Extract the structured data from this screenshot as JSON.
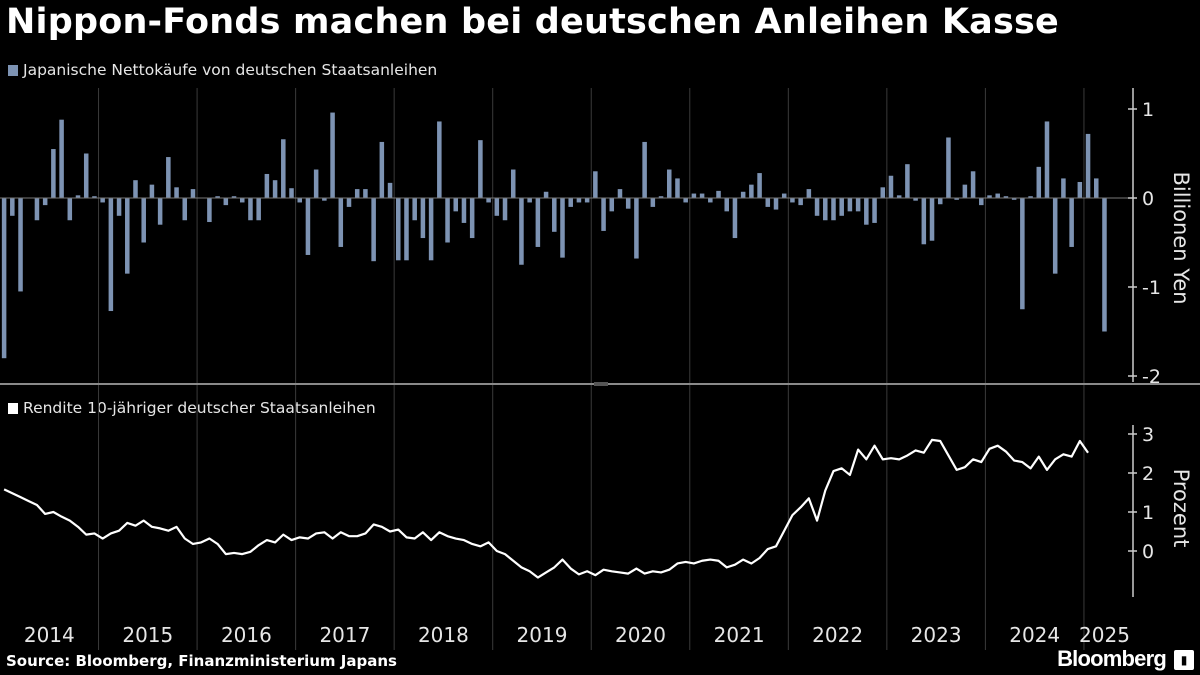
{
  "title": "Nippon-Fonds machen bei deutschen Anleihen Kasse",
  "source": "Source: Bloomberg, Finanzministerium Japans",
  "brand": "Bloomberg",
  "colors": {
    "bars": "#7d93b3",
    "line": "#ffffff",
    "background": "#000000",
    "grid": "#3a3a3a"
  },
  "chart_data": [
    {
      "type": "bar",
      "legend": "Japanische Nettokäufe von deutschen Staatsanleihen",
      "ylabel": "Billionen Yen",
      "ylim": [
        -2.1,
        1.2
      ],
      "yticks": [
        "1",
        "0",
        "-1",
        "-2"
      ],
      "x_start": "2014-01",
      "frequency": "monthly",
      "values": [
        -1.8,
        -0.2,
        -1.05,
        0.0,
        -0.25,
        -0.08,
        0.55,
        0.88,
        -0.25,
        0.03,
        0.5,
        0.02,
        -0.05,
        -1.27,
        -0.2,
        -0.85,
        0.2,
        -0.5,
        0.15,
        -0.3,
        0.46,
        0.12,
        -0.25,
        0.1,
        0.0,
        -0.27,
        0.02,
        -0.08,
        0.02,
        -0.05,
        -0.25,
        -0.25,
        0.27,
        0.2,
        0.66,
        0.11,
        -0.05,
        -0.64,
        0.32,
        -0.03,
        0.96,
        -0.55,
        -0.1,
        0.1,
        0.1,
        -0.71,
        0.63,
        0.17,
        -0.7,
        -0.7,
        -0.25,
        -0.45,
        -0.7,
        0.86,
        -0.5,
        -0.15,
        -0.28,
        -0.45,
        0.65,
        -0.05,
        -0.2,
        -0.25,
        0.32,
        -0.75,
        -0.05,
        -0.55,
        0.07,
        -0.38,
        -0.67,
        -0.1,
        -0.05,
        -0.05,
        0.3,
        -0.37,
        -0.15,
        0.1,
        -0.12,
        -0.68,
        0.63,
        -0.1,
        0.02,
        0.32,
        0.22,
        -0.05,
        0.05,
        0.05,
        -0.05,
        0.08,
        -0.15,
        -0.45,
        0.07,
        0.15,
        0.28,
        -0.1,
        -0.13,
        0.05,
        -0.05,
        -0.08,
        0.1,
        -0.2,
        -0.25,
        -0.25,
        -0.2,
        -0.15,
        -0.15,
        -0.3,
        -0.28,
        0.12,
        0.25,
        0.03,
        0.38,
        -0.03,
        -0.52,
        -0.48,
        -0.07,
        0.68,
        -0.02,
        0.15,
        0.3,
        -0.08,
        0.03,
        0.05,
        0.02,
        -0.02,
        -1.25,
        0.02,
        0.35,
        0.86,
        -0.85,
        0.22,
        -0.55,
        0.18,
        0.72,
        0.22,
        -1.5
      ]
    },
    {
      "type": "line",
      "legend": "Rendite 10-jähriger deutscher Staatsanleihen",
      "ylabel": "Prozent",
      "ylim": [
        -1.1,
        3.3
      ],
      "yticks": [
        "3",
        "2",
        "1",
        "0"
      ],
      "x_start": "2014-01",
      "frequency": "monthly",
      "values": [
        1.58,
        1.48,
        1.38,
        1.28,
        1.18,
        0.95,
        1.0,
        0.88,
        0.78,
        0.62,
        0.42,
        0.45,
        0.32,
        0.45,
        0.52,
        0.72,
        0.65,
        0.78,
        0.62,
        0.58,
        0.52,
        0.62,
        0.32,
        0.18,
        0.22,
        0.32,
        0.18,
        -0.08,
        -0.05,
        -0.08,
        -0.02,
        0.15,
        0.28,
        0.22,
        0.42,
        0.28,
        0.35,
        0.32,
        0.45,
        0.48,
        0.32,
        0.48,
        0.38,
        0.38,
        0.45,
        0.68,
        0.62,
        0.5,
        0.55,
        0.35,
        0.32,
        0.48,
        0.28,
        0.48,
        0.38,
        0.32,
        0.28,
        0.18,
        0.12,
        0.22,
        0.0,
        -0.08,
        -0.25,
        -0.42,
        -0.52,
        -0.68,
        -0.55,
        -0.42,
        -0.22,
        -0.45,
        -0.6,
        -0.52,
        -0.62,
        -0.48,
        -0.52,
        -0.55,
        -0.58,
        -0.45,
        -0.58,
        -0.52,
        -0.55,
        -0.48,
        -0.32,
        -0.28,
        -0.32,
        -0.25,
        -0.22,
        -0.25,
        -0.42,
        -0.35,
        -0.22,
        -0.32,
        -0.18,
        0.05,
        0.12,
        0.52,
        0.92,
        1.12,
        1.35,
        0.78,
        1.55,
        2.05,
        2.12,
        1.95,
        2.6,
        2.35,
        2.7,
        2.35,
        2.38,
        2.35,
        2.45,
        2.58,
        2.52,
        2.85,
        2.82,
        2.45,
        2.08,
        2.15,
        2.35,
        2.28,
        2.62,
        2.7,
        2.55,
        2.32,
        2.28,
        2.12,
        2.42,
        2.08,
        2.35,
        2.48,
        2.42,
        2.82,
        2.52
      ]
    }
  ],
  "x_labels": [
    "2014",
    "2015",
    "2016",
    "2017",
    "2018",
    "2019",
    "2020",
    "2021",
    "2022",
    "2023",
    "2024",
    "2025"
  ]
}
